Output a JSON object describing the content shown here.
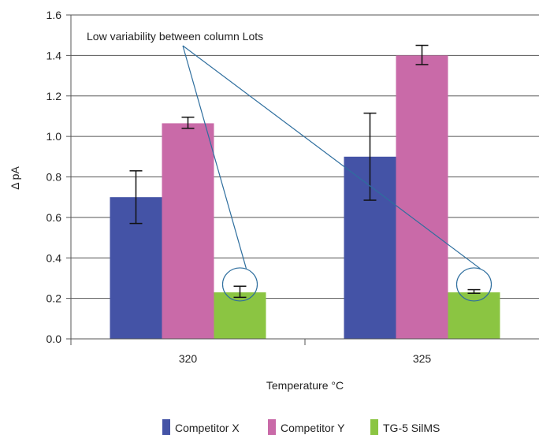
{
  "chart_data": {
    "type": "bar",
    "categories": [
      "320",
      "325"
    ],
    "series": [
      {
        "name": "Competitor X",
        "values": [
          0.7,
          0.9
        ],
        "err_low": [
          0.57,
          0.685
        ],
        "err_high": [
          0.83,
          1.115
        ],
        "color": "#4453a6"
      },
      {
        "name": "Competitor Y",
        "values": [
          1.065,
          1.4
        ],
        "err_low": [
          1.04,
          1.355
        ],
        "err_high": [
          1.095,
          1.45
        ],
        "color": "#c96aa8"
      },
      {
        "name": "TG-5 SilMS",
        "values": [
          0.23,
          0.23
        ],
        "err_low": [
          0.205,
          0.225
        ],
        "err_high": [
          0.26,
          0.243
        ],
        "color": "#8bc542"
      }
    ],
    "xlabel": "Temperature °C",
    "ylabel": "Δ pA",
    "ylim": [
      0,
      1.6
    ],
    "yticks": [
      "0.0",
      "0.2",
      "0.4",
      "0.6",
      "0.8",
      "1.0",
      "1.2",
      "1.4",
      "1.6"
    ],
    "grid": true,
    "legend": "bottom",
    "annotation": {
      "text": "Low variability between column Lots",
      "line_color": "#2e6e9e"
    }
  }
}
